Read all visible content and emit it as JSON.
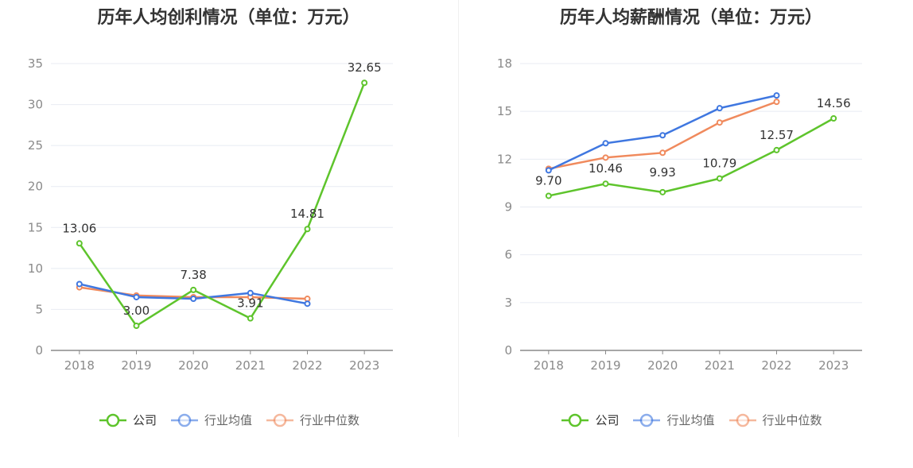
{
  "colors": {
    "company": "#5ec42c",
    "industry_avg": "#3f77e0",
    "industry_median": "#f08a5d"
  },
  "chart_data": [
    {
      "type": "line",
      "title": "历年人均创利情况（单位：万元）",
      "x": [
        "2018",
        "2019",
        "2020",
        "2021",
        "2022",
        "2023"
      ],
      "ylim": [
        0,
        35
      ],
      "yticks": [
        0,
        5,
        10,
        15,
        20,
        25,
        30,
        35
      ],
      "grid": true,
      "legend_position": "bottom",
      "series": [
        {
          "name": "公司",
          "color_key": "company",
          "values": [
            13.06,
            3.0,
            7.38,
            3.91,
            14.81,
            32.65
          ],
          "labels": [
            "13.06",
            "3.00",
            "7.38",
            "3.91",
            "14.81",
            "32.65"
          ]
        },
        {
          "name": "行业均值",
          "color_key": "industry_avg",
          "values": [
            8.1,
            6.5,
            6.3,
            7.0,
            5.7,
            null
          ]
        },
        {
          "name": "行业中位数",
          "color_key": "industry_median",
          "values": [
            7.7,
            6.7,
            6.5,
            6.5,
            6.3,
            null
          ]
        }
      ]
    },
    {
      "type": "line",
      "title": "历年人均薪酬情况（单位：万元）",
      "x": [
        "2018",
        "2019",
        "2020",
        "2021",
        "2022",
        "2023"
      ],
      "ylim": [
        0,
        18
      ],
      "yticks": [
        0,
        3,
        6,
        9,
        12,
        15,
        18
      ],
      "grid": true,
      "legend_position": "bottom",
      "series": [
        {
          "name": "公司",
          "color_key": "company",
          "values": [
            9.7,
            10.46,
            9.93,
            10.79,
            12.57,
            14.56
          ],
          "labels": [
            "9.70",
            "10.46",
            "9.93",
            "10.79",
            "12.57",
            "14.56"
          ]
        },
        {
          "name": "行业均值",
          "color_key": "industry_avg",
          "values": [
            11.3,
            13.0,
            13.5,
            15.2,
            16.0,
            null
          ]
        },
        {
          "name": "行业中位数",
          "color_key": "industry_median",
          "values": [
            11.4,
            12.1,
            12.4,
            14.3,
            15.6,
            null
          ]
        }
      ]
    }
  ]
}
